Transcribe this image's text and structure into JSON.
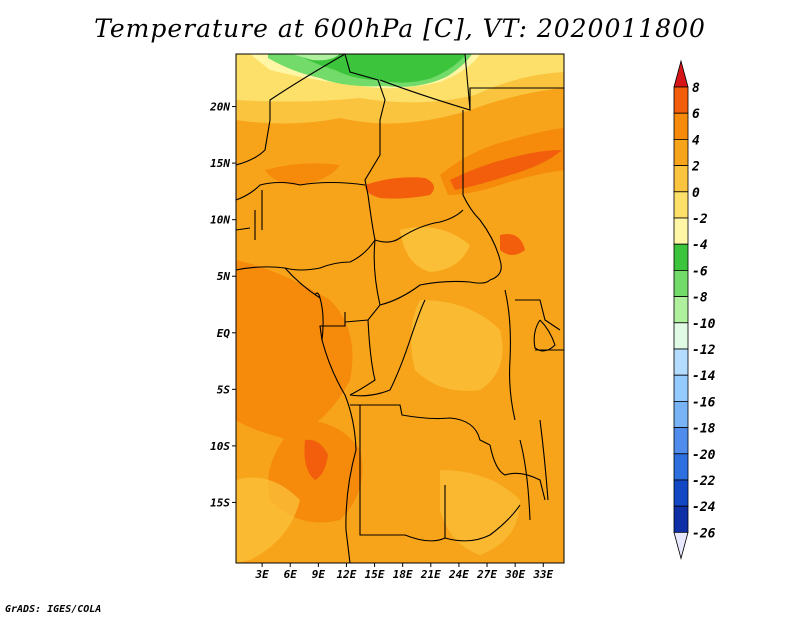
{
  "title": "Temperature at 600hPa [C], VT: 2020011800",
  "credit": "GrADS: IGES/COLA",
  "map": {
    "lon_range": [
      0,
      35
    ],
    "lat_range": [
      -20,
      25
    ],
    "lon_ticks": [
      "3E",
      "6E",
      "9E",
      "12E",
      "15E",
      "18E",
      "21E",
      "24E",
      "27E",
      "30E",
      "33E"
    ],
    "lat_ticks": [
      "20N",
      "15N",
      "10N",
      "5N",
      "EQ",
      "5S",
      "10S",
      "15S"
    ]
  },
  "colorbar": {
    "labels": [
      "8",
      "6",
      "4",
      "2",
      "0",
      "-2",
      "-4",
      "-6",
      "-8",
      "-10",
      "-12",
      "-14",
      "-16",
      "-18",
      "-20",
      "-22",
      "-24",
      "-26"
    ],
    "colors": [
      "#e6271a",
      "#f25e0c",
      "#f58a0b",
      "#f8a41a",
      "#fbc43f",
      "#fde06a",
      "#fff6a6",
      "#3cc43c",
      "#72db6a",
      "#aef09e",
      "#e0fae6",
      "#b4dcff",
      "#96cbff",
      "#78b4f5",
      "#508cec",
      "#2e6fe0",
      "#1348c5",
      "#0e2fa5",
      "#0b1a86",
      "#08105e"
    ],
    "top_color": "#d61518",
    "bottom_color": "#e8e8ff"
  }
}
